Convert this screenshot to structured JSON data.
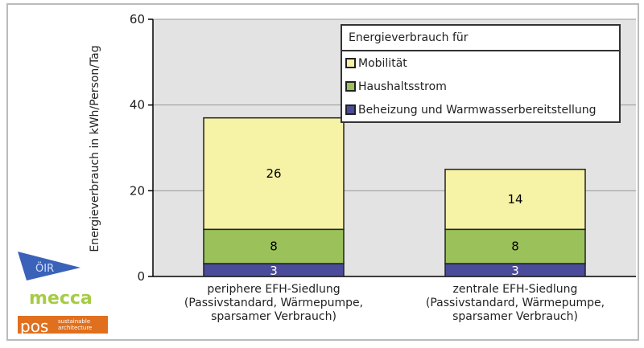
{
  "chart_data": {
    "type": "bar",
    "stacked": true,
    "ylabel": "Energieverbrauch in kWh/Person/Tag",
    "ylim": [
      0,
      60
    ],
    "yticks": [
      0,
      20,
      40,
      60
    ],
    "categories": [
      [
        "periphere EFH-Siedlung",
        "(Passivstandard, Wärmepumpe,",
        "sparsamer Verbrauch)"
      ],
      [
        "zentrale EFH-Siedlung",
        "(Passivstandard, Wärmepumpe,",
        "sparsamer Verbrauch)"
      ]
    ],
    "legend_title": "Energieverbrauch für",
    "legend_position": "top-right",
    "series": [
      {
        "name": "Beheizung und Warmwasserbereitstellung",
        "values": [
          3,
          3
        ],
        "color": "#4b4b9b",
        "label_color": "#ffffff"
      },
      {
        "name": "Haushaltsstrom",
        "values": [
          8,
          8
        ],
        "color": "#9bc15a",
        "label_color": "#000000"
      },
      {
        "name": "Mobilität",
        "values": [
          26,
          14
        ],
        "color": "#f6f2a6",
        "label_color": "#000000"
      }
    ]
  },
  "logos": [
    "ÖIR",
    "mecca",
    "pos",
    "sustainable architecture"
  ]
}
